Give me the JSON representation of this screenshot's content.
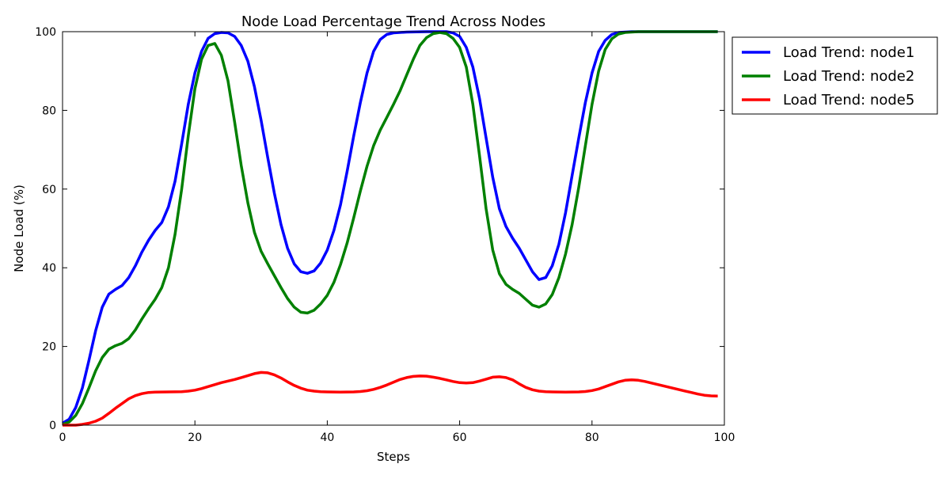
{
  "chart_data": {
    "type": "line",
    "title": "Node Load Percentage Trend Across Nodes",
    "xlabel": "Steps",
    "ylabel": "Node Load (%)",
    "xlim": [
      0,
      100
    ],
    "ylim": [
      0,
      100
    ],
    "x_ticks": [
      0,
      20,
      40,
      60,
      80,
      100
    ],
    "y_ticks": [
      0,
      20,
      40,
      60,
      80,
      100
    ],
    "grid": false,
    "legend_position": "outside-top-right",
    "series": [
      {
        "name": "Load Trend: node1",
        "color": "#0000ff",
        "points": [
          [
            0,
            0.5
          ],
          [
            1,
            1.5
          ],
          [
            2,
            4.5
          ],
          [
            3,
            9.5
          ],
          [
            4,
            16.5
          ],
          [
            5,
            24
          ],
          [
            6,
            30
          ],
          [
            7,
            33.3
          ],
          [
            8,
            34.5
          ],
          [
            9,
            35.5
          ],
          [
            10,
            37.5
          ],
          [
            11,
            40.5
          ],
          [
            12,
            44
          ],
          [
            13,
            47
          ],
          [
            14,
            49.5
          ],
          [
            15,
            51.5
          ],
          [
            16,
            55.5
          ],
          [
            17,
            62
          ],
          [
            18,
            71.5
          ],
          [
            19,
            81.5
          ],
          [
            20,
            89.5
          ],
          [
            21,
            95
          ],
          [
            22,
            98.3
          ],
          [
            23,
            99.5
          ],
          [
            24,
            99.8
          ],
          [
            25,
            99.7
          ],
          [
            26,
            98.8
          ],
          [
            27,
            96.5
          ],
          [
            28,
            92.5
          ],
          [
            29,
            86
          ],
          [
            30,
            77.5
          ],
          [
            31,
            68
          ],
          [
            32,
            59
          ],
          [
            33,
            51
          ],
          [
            34,
            45
          ],
          [
            35,
            41
          ],
          [
            36,
            39
          ],
          [
            37,
            38.6
          ],
          [
            38,
            39.2
          ],
          [
            39,
            41.2
          ],
          [
            40,
            44.5
          ],
          [
            41,
            49.5
          ],
          [
            42,
            56
          ],
          [
            43,
            64.5
          ],
          [
            44,
            73.5
          ],
          [
            45,
            82
          ],
          [
            46,
            89.5
          ],
          [
            47,
            95
          ],
          [
            48,
            98
          ],
          [
            49,
            99.3
          ],
          [
            50,
            99.7
          ],
          [
            52,
            99.9
          ],
          [
            55,
            100
          ],
          [
            58,
            100
          ],
          [
            59,
            99.7
          ],
          [
            60,
            98.8
          ],
          [
            61,
            96
          ],
          [
            62,
            91
          ],
          [
            63,
            83
          ],
          [
            64,
            73
          ],
          [
            65,
            63
          ],
          [
            66,
            55
          ],
          [
            67,
            50.5
          ],
          [
            68,
            47.5
          ],
          [
            69,
            45
          ],
          [
            70,
            42
          ],
          [
            71,
            39
          ],
          [
            72,
            37
          ],
          [
            73,
            37.5
          ],
          [
            74,
            40.5
          ],
          [
            75,
            46
          ],
          [
            76,
            54
          ],
          [
            77,
            63.5
          ],
          [
            78,
            73
          ],
          [
            79,
            82
          ],
          [
            80,
            89.5
          ],
          [
            81,
            95
          ],
          [
            82,
            97.8
          ],
          [
            83,
            99.3
          ],
          [
            84,
            99.8
          ],
          [
            86,
            100
          ],
          [
            99,
            100
          ]
        ]
      },
      {
        "name": "Load Trend: node2",
        "color": "#008000",
        "points": [
          [
            0,
            0.2
          ],
          [
            1,
            0.8
          ],
          [
            2,
            2.5
          ],
          [
            3,
            5.5
          ],
          [
            4,
            9.5
          ],
          [
            5,
            13.8
          ],
          [
            6,
            17.2
          ],
          [
            7,
            19.3
          ],
          [
            8,
            20.2
          ],
          [
            9,
            20.8
          ],
          [
            10,
            22
          ],
          [
            11,
            24.2
          ],
          [
            12,
            27
          ],
          [
            13,
            29.6
          ],
          [
            14,
            32
          ],
          [
            15,
            35
          ],
          [
            16,
            40
          ],
          [
            17,
            48.5
          ],
          [
            18,
            60
          ],
          [
            19,
            73.5
          ],
          [
            20,
            85.5
          ],
          [
            21,
            93
          ],
          [
            22,
            96.5
          ],
          [
            23,
            97
          ],
          [
            24,
            94
          ],
          [
            25,
            87.5
          ],
          [
            26,
            77
          ],
          [
            27,
            66
          ],
          [
            28,
            56.5
          ],
          [
            29,
            49
          ],
          [
            30,
            44.2
          ],
          [
            31,
            41
          ],
          [
            32,
            38
          ],
          [
            33,
            35
          ],
          [
            34,
            32.2
          ],
          [
            35,
            30
          ],
          [
            36,
            28.7
          ],
          [
            37,
            28.5
          ],
          [
            38,
            29.2
          ],
          [
            39,
            30.8
          ],
          [
            40,
            33
          ],
          [
            41,
            36.3
          ],
          [
            42,
            40.8
          ],
          [
            43,
            46.3
          ],
          [
            44,
            52.7
          ],
          [
            45,
            59.5
          ],
          [
            46,
            65.8
          ],
          [
            47,
            71
          ],
          [
            48,
            75
          ],
          [
            49,
            78.2
          ],
          [
            50,
            81.5
          ],
          [
            51,
            85
          ],
          [
            52,
            89
          ],
          [
            53,
            93
          ],
          [
            54,
            96.5
          ],
          [
            55,
            98.5
          ],
          [
            56,
            99.5
          ],
          [
            57,
            99.8
          ],
          [
            58,
            99.5
          ],
          [
            59,
            98.3
          ],
          [
            60,
            96
          ],
          [
            61,
            91
          ],
          [
            62,
            81.5
          ],
          [
            63,
            68.5
          ],
          [
            64,
            55
          ],
          [
            65,
            44.5
          ],
          [
            66,
            38.5
          ],
          [
            67,
            35.8
          ],
          [
            68,
            34.5
          ],
          [
            69,
            33.5
          ],
          [
            70,
            32
          ],
          [
            71,
            30.5
          ],
          [
            72,
            30
          ],
          [
            73,
            30.8
          ],
          [
            74,
            33.2
          ],
          [
            75,
            37.5
          ],
          [
            76,
            43.5
          ],
          [
            77,
            51
          ],
          [
            78,
            60.5
          ],
          [
            79,
            71
          ],
          [
            80,
            81.5
          ],
          [
            81,
            90
          ],
          [
            82,
            95.5
          ],
          [
            83,
            98.2
          ],
          [
            84,
            99.4
          ],
          [
            85,
            99.8
          ],
          [
            87,
            100
          ],
          [
            99,
            100
          ]
        ]
      },
      {
        "name": "Load Trend: node5",
        "color": "#ff0000",
        "points": [
          [
            0,
            0
          ],
          [
            2,
            0
          ],
          [
            3,
            0.2
          ],
          [
            4,
            0.5
          ],
          [
            5,
            1
          ],
          [
            6,
            1.8
          ],
          [
            7,
            3
          ],
          [
            8,
            4.3
          ],
          [
            9,
            5.5
          ],
          [
            10,
            6.7
          ],
          [
            11,
            7.5
          ],
          [
            12,
            8
          ],
          [
            13,
            8.3
          ],
          [
            14,
            8.4
          ],
          [
            16,
            8.45
          ],
          [
            18,
            8.5
          ],
          [
            19,
            8.65
          ],
          [
            20,
            8.9
          ],
          [
            21,
            9.3
          ],
          [
            22,
            9.8
          ],
          [
            23,
            10.3
          ],
          [
            24,
            10.8
          ],
          [
            25,
            11.2
          ],
          [
            26,
            11.6
          ],
          [
            27,
            12.1
          ],
          [
            28,
            12.6
          ],
          [
            29,
            13.1
          ],
          [
            30,
            13.4
          ],
          [
            31,
            13.3
          ],
          [
            32,
            12.8
          ],
          [
            33,
            12
          ],
          [
            34,
            11
          ],
          [
            35,
            10.1
          ],
          [
            36,
            9.4
          ],
          [
            37,
            8.9
          ],
          [
            38,
            8.65
          ],
          [
            39,
            8.5
          ],
          [
            40,
            8.45
          ],
          [
            42,
            8.4
          ],
          [
            44,
            8.45
          ],
          [
            45,
            8.55
          ],
          [
            46,
            8.75
          ],
          [
            47,
            9.1
          ],
          [
            48,
            9.6
          ],
          [
            49,
            10.2
          ],
          [
            50,
            10.9
          ],
          [
            51,
            11.6
          ],
          [
            52,
            12.1
          ],
          [
            53,
            12.4
          ],
          [
            54,
            12.5
          ],
          [
            55,
            12.45
          ],
          [
            56,
            12.2
          ],
          [
            57,
            11.9
          ],
          [
            58,
            11.5
          ],
          [
            59,
            11.1
          ],
          [
            60,
            10.8
          ],
          [
            61,
            10.7
          ],
          [
            62,
            10.8
          ],
          [
            63,
            11.2
          ],
          [
            64,
            11.7
          ],
          [
            65,
            12.2
          ],
          [
            66,
            12.3
          ],
          [
            67,
            12.1
          ],
          [
            68,
            11.5
          ],
          [
            69,
            10.5
          ],
          [
            70,
            9.6
          ],
          [
            71,
            9
          ],
          [
            72,
            8.65
          ],
          [
            73,
            8.5
          ],
          [
            74,
            8.45
          ],
          [
            76,
            8.4
          ],
          [
            78,
            8.45
          ],
          [
            79,
            8.55
          ],
          [
            80,
            8.8
          ],
          [
            81,
            9.2
          ],
          [
            82,
            9.8
          ],
          [
            83,
            10.4
          ],
          [
            84,
            11
          ],
          [
            85,
            11.4
          ],
          [
            86,
            11.5
          ],
          [
            87,
            11.4
          ],
          [
            88,
            11.1
          ],
          [
            89,
            10.7
          ],
          [
            90,
            10.3
          ],
          [
            91,
            9.9
          ],
          [
            92,
            9.5
          ],
          [
            93,
            9.1
          ],
          [
            94,
            8.7
          ],
          [
            95,
            8.3
          ],
          [
            96,
            7.9
          ],
          [
            97,
            7.6
          ],
          [
            98,
            7.45
          ],
          [
            99,
            7.4
          ]
        ]
      }
    ]
  }
}
